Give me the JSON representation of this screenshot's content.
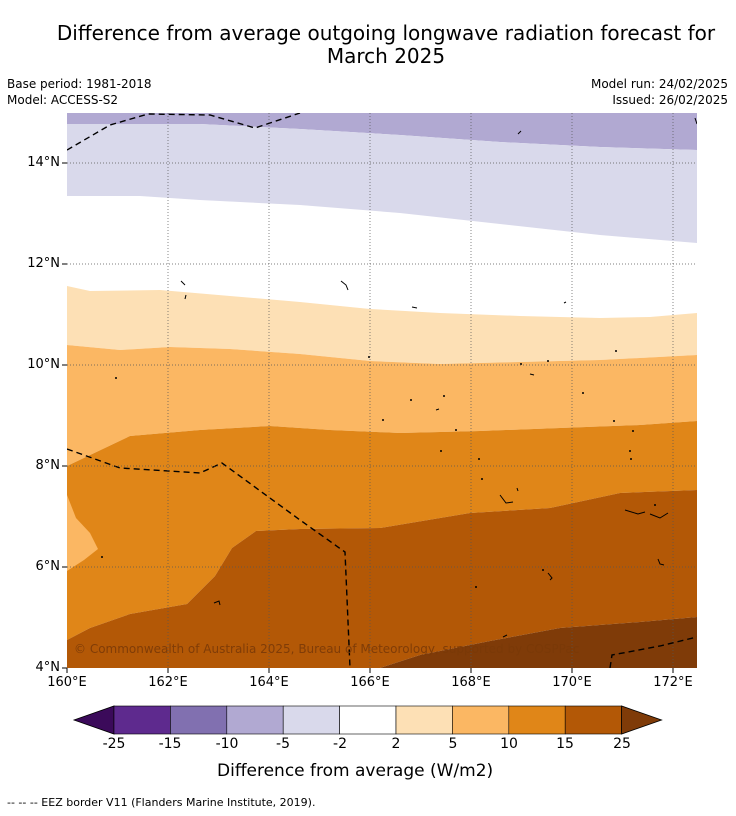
{
  "title_line1": "Difference from average outgoing longwave radiation forecast for",
  "title_line2": "March 2025",
  "base_period": "Base period: 1981-2018",
  "model": "Model: ACCESS-S2",
  "model_run": "Model run: 24/02/2025",
  "issued": "Issued: 26/02/2025",
  "copyright": "© Commonwealth of Australia 2025, Bureau of Meteorology, supported by COSPPac",
  "y_ticks": [
    "14°N",
    "12°N",
    "10°N",
    "8°N",
    "6°N",
    "4°N"
  ],
  "x_ticks": [
    "160°E",
    "162°E",
    "164°E",
    "166°E",
    "168°E",
    "170°E",
    "172°E"
  ],
  "colorbar": {
    "title": "Difference from average (W/m2)",
    "levels": [
      "-25",
      "-15",
      "-10",
      "-5",
      "-2",
      "2",
      "5",
      "10",
      "15",
      "25"
    ],
    "colors": [
      "#3b0a5a",
      "#5e2a8e",
      "#8170b0",
      "#b1a9d2",
      "#d9d9eb",
      "#ffffff",
      "#fde0b5",
      "#fbb763",
      "#e08618",
      "#b35806",
      "#7f3b08"
    ]
  },
  "footer": "-- -- -- EEZ border V11 (Flanders Marine Institute, 2019)."
}
